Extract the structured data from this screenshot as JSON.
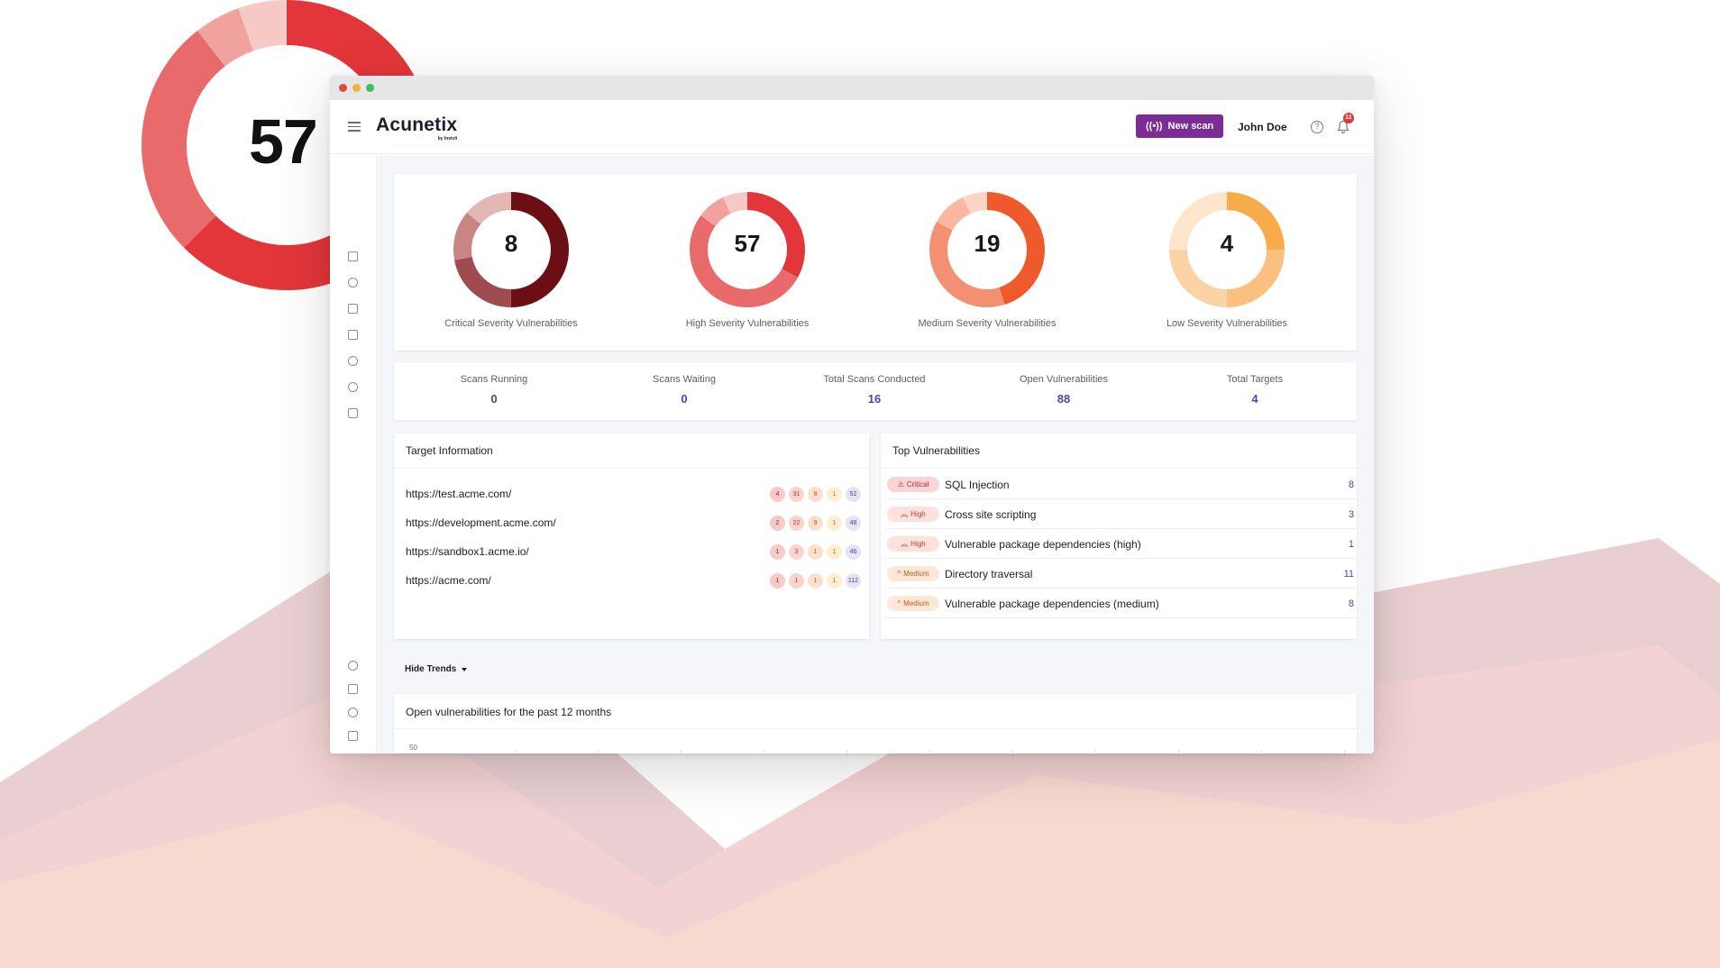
{
  "colors": {
    "brand": "#7b2c95",
    "critical": [
      "#6b0f15",
      "#a04b4f",
      "#c98582",
      "#e3b8b4"
    ],
    "high": [
      "#e2363a",
      "#e86a6a",
      "#f0a29f",
      "#f7c9c6"
    ],
    "medium": [
      "#ef5a2d",
      "#f39071",
      "#f8b79f",
      "#fbd4c4"
    ],
    "low": [
      "#f7ab4a",
      "#fac07f",
      "#fbd3a6",
      "#fde6cc"
    ],
    "link_value": "#5a3ea8"
  },
  "hero": {
    "number": "57"
  },
  "app": {
    "logo": "Acunetix",
    "logo_sub": "by Invicti",
    "new_scan_label": "New scan",
    "user_name": "John Doe",
    "notification_count": "11"
  },
  "severity": [
    {
      "number": "8",
      "label": "Critical Severity Vulnerabilities",
      "segments": [
        0.5,
        0.22,
        0.14,
        0.14
      ]
    },
    {
      "number": "57",
      "label": "High Severity Vulnerabilities",
      "segments": [
        0.33,
        0.52,
        0.08,
        0.07
      ]
    },
    {
      "number": "19",
      "label": "Medium Severity Vulnerabilities",
      "segments": [
        0.45,
        0.38,
        0.1,
        0.07
      ]
    },
    {
      "number": "4",
      "label": "Low Severity Vulnerabilities",
      "segments": [
        0.25,
        0.25,
        0.25,
        0.25
      ]
    }
  ],
  "stats": [
    {
      "label": "Scans Running",
      "value": "0"
    },
    {
      "label": "Scans Waiting",
      "value": "0"
    },
    {
      "label": "Total Scans Conducted",
      "value": "16"
    },
    {
      "label": "Open Vulnerabilities",
      "value": "88"
    },
    {
      "label": "Total Targets",
      "value": "4"
    }
  ],
  "targets": {
    "title": "Target Information",
    "rows": [
      {
        "url": "https://test.acme.com/",
        "counts": [
          "4",
          "31",
          "8",
          "1",
          "52"
        ]
      },
      {
        "url": "https://development.acme.com/",
        "counts": [
          "2",
          "22",
          "9",
          "1",
          "48"
        ]
      },
      {
        "url": "https://sandbox1.acme.io/",
        "counts": [
          "1",
          "3",
          "1",
          "1",
          "46"
        ]
      },
      {
        "url": "https://acme.com/",
        "counts": [
          "1",
          "1",
          "1",
          "1",
          "112"
        ]
      }
    ]
  },
  "top_vulns": {
    "title": "Top Vulnerabilities",
    "rows": [
      {
        "severity": "Critical",
        "name": "SQL Injection",
        "count": "8"
      },
      {
        "severity": "High",
        "name": "Cross site scripting",
        "count": "3"
      },
      {
        "severity": "High",
        "name": "Vulnerable package dependencies (high)",
        "count": "1"
      },
      {
        "severity": "Medium",
        "name": "Directory traversal",
        "count": "11"
      },
      {
        "severity": "Medium",
        "name": "Vulnerable package dependencies (medium)",
        "count": "8"
      }
    ]
  },
  "trends": {
    "toggle_label": "Hide Trends",
    "title": "Open vulnerabilities for the past 12 months",
    "y_tick": "50"
  }
}
